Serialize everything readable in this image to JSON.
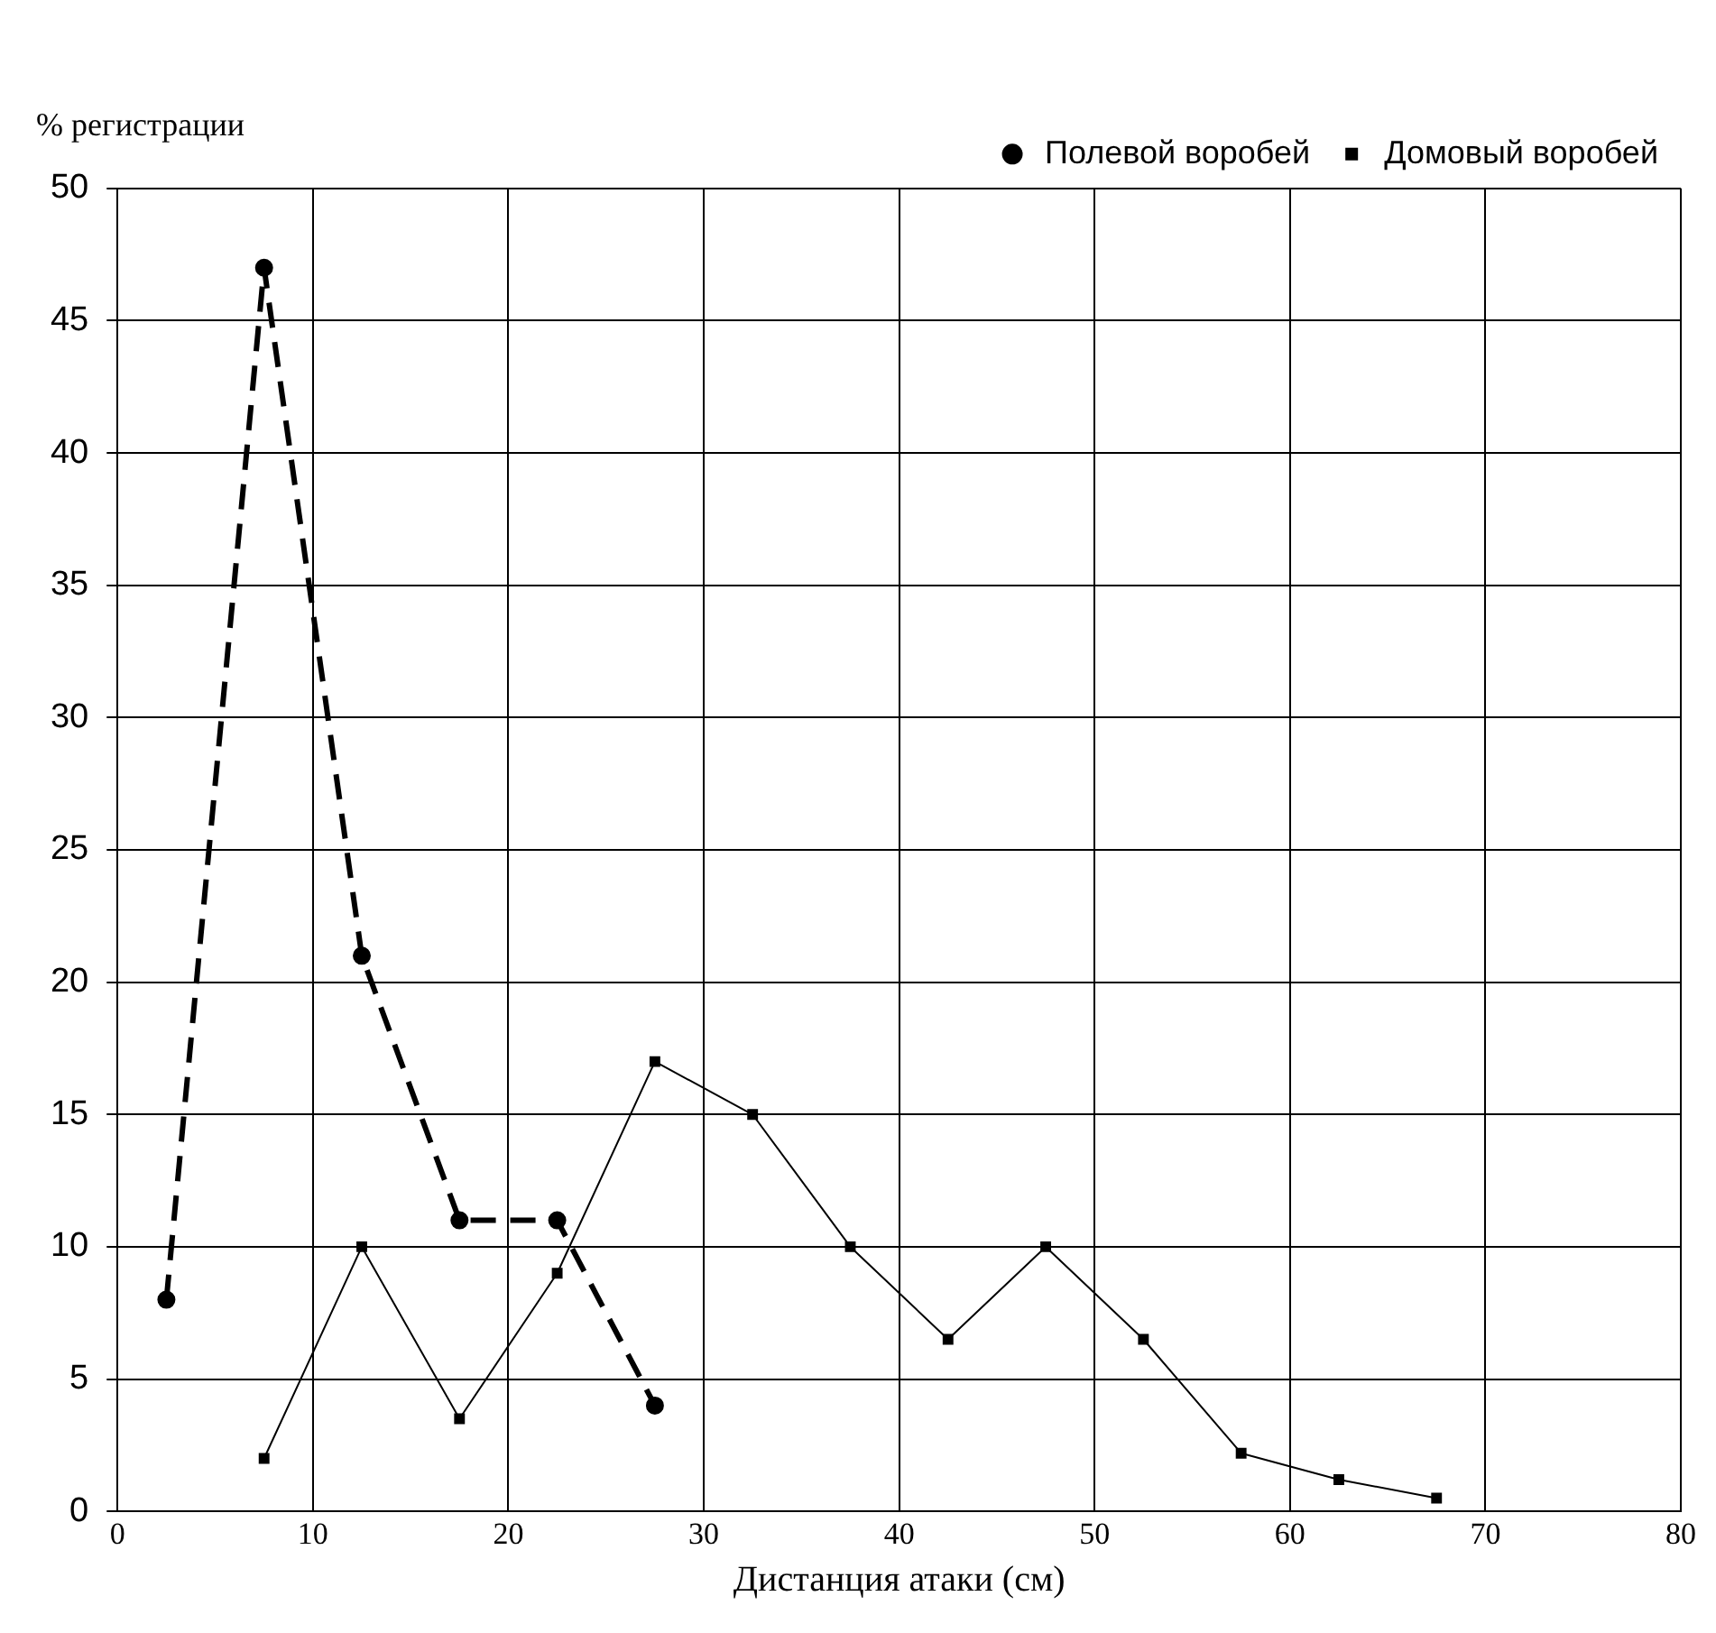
{
  "chart_data": {
    "type": "line",
    "xlabel": "Дистанция атаки (см)",
    "ylabel": "% регистрации",
    "xlim": [
      0,
      80
    ],
    "xticks": [
      0,
      10,
      20,
      30,
      40,
      50,
      60,
      70,
      80
    ],
    "ylim": [
      0,
      50
    ],
    "yticks": [
      0,
      5,
      10,
      15,
      20,
      25,
      30,
      35,
      40,
      45,
      50
    ],
    "grid": true,
    "legend": "top right",
    "series": [
      {
        "name": "Полевой воробей",
        "color": "#000000",
        "marker": "circle",
        "line_style": "dashed",
        "x": [
          2.5,
          7.5,
          12.5,
          17.5,
          22.5,
          27.5
        ],
        "values": [
          8,
          47,
          21,
          11,
          11,
          4
        ]
      },
      {
        "name": "Домовый воробей",
        "color": "#000000",
        "marker": "square",
        "line_style": "solid",
        "x": [
          7.5,
          12.5,
          17.5,
          22.5,
          27.5,
          32.5,
          37.5,
          42.5,
          47.5,
          52.5,
          57.5,
          62.5,
          67.5
        ],
        "values": [
          2,
          10,
          3.5,
          9,
          17,
          15,
          10,
          6.5,
          10,
          6.5,
          2.2,
          1.2,
          0.5
        ]
      }
    ]
  }
}
